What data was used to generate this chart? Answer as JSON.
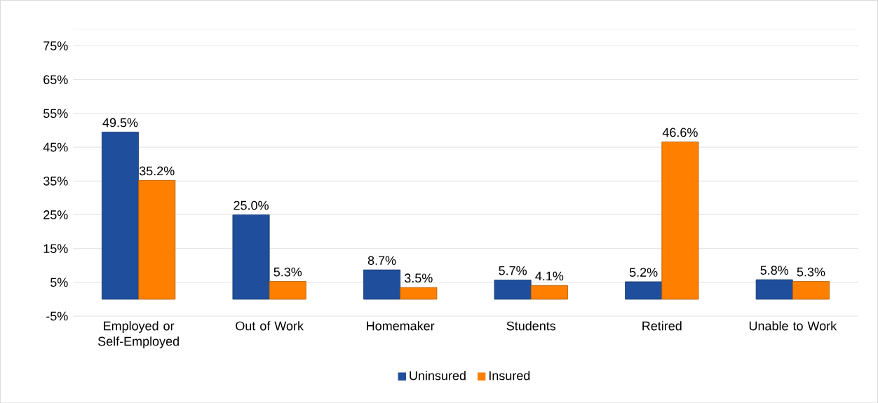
{
  "chart_data": {
    "type": "bar",
    "categories": [
      "Employed or Self-Employed",
      "Out of Work",
      "Homemaker",
      "Students",
      "Retired",
      "Unable to Work"
    ],
    "series": [
      {
        "name": "Uninsured",
        "color": "#1f4e9c",
        "values": [
          49.5,
          25.0,
          8.7,
          5.7,
          5.2,
          5.8
        ],
        "value_labels": [
          "49.5%",
          "25.0%",
          "8.7%",
          "5.7%",
          "5.2%",
          "5.8%"
        ]
      },
      {
        "name": "Insured",
        "color": "#ff8000",
        "values": [
          35.2,
          5.3,
          3.5,
          4.1,
          46.6,
          5.3
        ],
        "value_labels": [
          "35.2%",
          "5.3%",
          "3.5%",
          "4.1%",
          "46.6%",
          "5.3%"
        ]
      }
    ],
    "ylim": [
      -5,
      80
    ],
    "yticks": [
      {
        "value": -5,
        "label": "-5%"
      },
      {
        "value": 5,
        "label": "5%"
      },
      {
        "value": 15,
        "label": "15%"
      },
      {
        "value": 25,
        "label": "25%"
      },
      {
        "value": 35,
        "label": "35%"
      },
      {
        "value": 45,
        "label": "45%"
      },
      {
        "value": 55,
        "label": "55%"
      },
      {
        "value": 65,
        "label": "65%"
      },
      {
        "value": 75,
        "label": "75%"
      }
    ],
    "grid": "y",
    "legend": "bottom"
  }
}
